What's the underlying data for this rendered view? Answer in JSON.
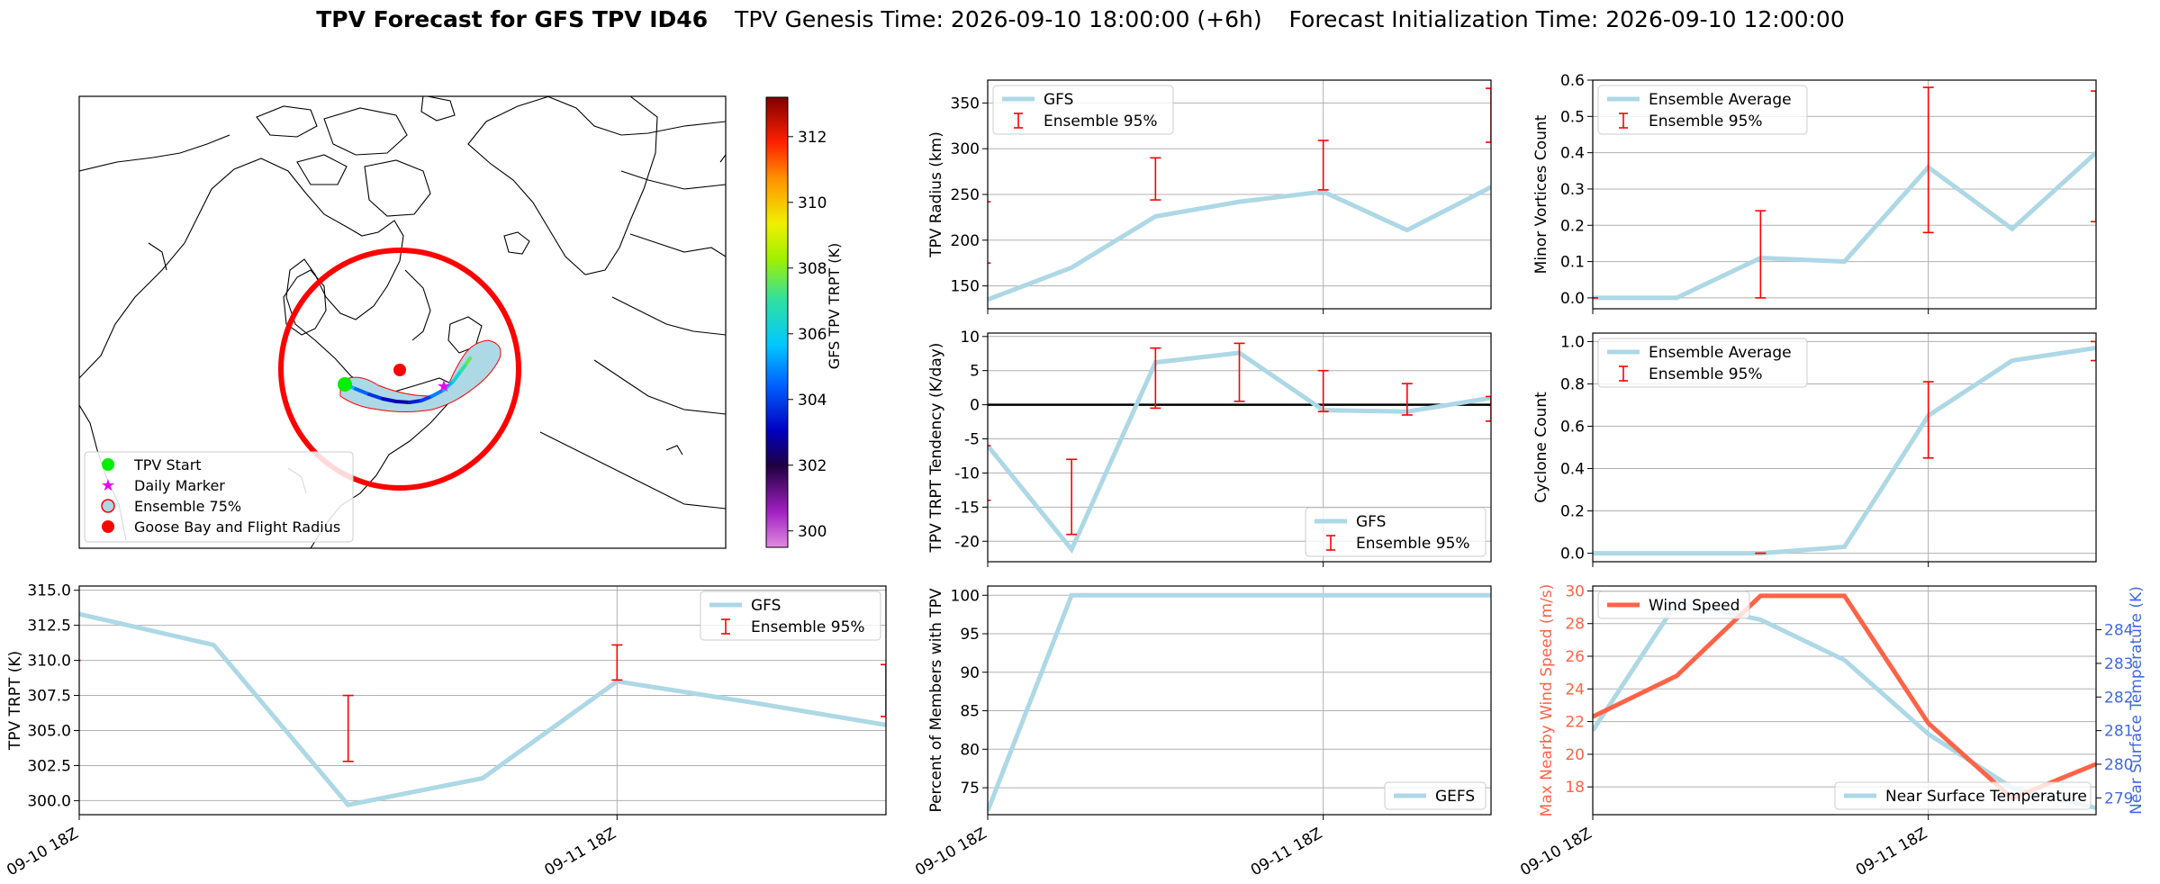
{
  "figure": {
    "title_bold": "TPV Forecast for GFS TPV ID46",
    "title_genesis": "TPV Genesis Time: 2026-09-10 18:00:00 (+6h)",
    "title_init": "Forecast Initialization Time: 2026-09-10 12:00:00"
  },
  "colors": {
    "gfs_line": "#add8e6",
    "error_bar": "#ff0000",
    "wind_line": "#ff6347",
    "temp_axis": "#4169e1",
    "flight_radius": "#ff0000",
    "tpv_start": "#00ee00",
    "daily_marker": "#ee00ee",
    "zero_line": "#000000",
    "coast": "#000000"
  },
  "chart_data": [
    {
      "id": "map",
      "type": "map",
      "colorbar": {
        "label": "GFS TPV TRPT (K)",
        "ticks": [
          300,
          302,
          304,
          306,
          308,
          310,
          312
        ],
        "range": [
          299.5,
          313.2
        ],
        "colormap": "purple-black-blue-cyan-green-yellow-orange-red"
      },
      "legend": {
        "placement": "lower left",
        "entries": [
          "TPV Start",
          "Daily Marker",
          "Ensemble 75%",
          "Goose Bay and Flight Radius"
        ]
      },
      "track_trpt_values": [
        305.5,
        304.5,
        303.8,
        303.2,
        302.9,
        303.5,
        304.0,
        304.8,
        305.5,
        306.3,
        307.0,
        307.6,
        308.2
      ]
    },
    {
      "id": "radius",
      "type": "line",
      "ylabel": "TPV Radius (km)",
      "x_ticks": [
        "09-10 18Z",
        "09-11 18Z"
      ],
      "x_ticks_rotated": false,
      "x": [
        0,
        1,
        2,
        3,
        4,
        5,
        6
      ],
      "ylim": [
        125,
        375
      ],
      "yticks": [
        150,
        200,
        250,
        300,
        350
      ],
      "grid": true,
      "legend_placement": "upper left",
      "series": [
        {
          "name": "GFS",
          "values": [
            135,
            170,
            226,
            242,
            253,
            211,
            258
          ]
        }
      ],
      "error_bar_name": "Ensemble 95%",
      "error_bars": [
        [
          -0.03,
          175,
          242
        ],
        [
          2,
          244,
          290
        ],
        [
          4,
          255,
          309
        ],
        [
          6,
          307,
          366
        ]
      ]
    },
    {
      "id": "minor-vortices",
      "type": "line",
      "ylabel": "Minor Vortices Count",
      "x_ticks": [
        "09-10 18Z",
        "09-11 18Z"
      ],
      "x_ticks_rotated": false,
      "x": [
        0,
        1,
        2,
        3,
        4,
        5,
        6
      ],
      "ylim": [
        -0.03,
        0.6
      ],
      "yticks": [
        0.0,
        0.1,
        0.2,
        0.3,
        0.4,
        0.5,
        0.6
      ],
      "grid": true,
      "legend_placement": "upper left",
      "series": [
        {
          "name": "Ensemble Average",
          "values": [
            0.0,
            0.0,
            0.11,
            0.1,
            0.36,
            0.19,
            0.4
          ]
        }
      ],
      "error_bar_name": "Ensemble 95%",
      "error_bars": [
        [
          0,
          0.0,
          0.0
        ],
        [
          2,
          0.0,
          0.24
        ],
        [
          4,
          0.18,
          0.58
        ],
        [
          6,
          0.21,
          0.57
        ]
      ]
    },
    {
      "id": "tendency",
      "type": "line",
      "ylabel": "TPV TRPT Tendency (K/day)",
      "x_ticks": [
        "09-10 18Z",
        "09-11 18Z"
      ],
      "x_ticks_rotated": false,
      "x": [
        0,
        1,
        2,
        3,
        4,
        5,
        6
      ],
      "ylim": [
        -23,
        10.5
      ],
      "yticks": [
        -20,
        -15,
        -10,
        -5,
        0,
        5,
        10
      ],
      "grid": true,
      "zero_line": true,
      "legend_placement": "lower right",
      "series": [
        {
          "name": "GFS",
          "values": [
            -6,
            -21.2,
            6.2,
            7.6,
            -0.8,
            -1.0,
            1.0
          ]
        }
      ],
      "error_bar_name": "Ensemble 95%",
      "error_bars": [
        [
          -0.03,
          -14,
          -6
        ],
        [
          1,
          -19,
          -8
        ],
        [
          2,
          -0.5,
          8.3
        ],
        [
          3,
          0.5,
          9.0
        ],
        [
          4,
          -1,
          5
        ],
        [
          5,
          -1.5,
          3.1
        ],
        [
          6,
          -2.4,
          1.2
        ]
      ]
    },
    {
      "id": "cyclone",
      "type": "line",
      "ylabel": "Cyclone Count",
      "x_ticks": [
        "09-10 18Z",
        "09-11 18Z"
      ],
      "x_ticks_rotated": false,
      "x": [
        0,
        1,
        2,
        3,
        4,
        5,
        6
      ],
      "ylim": [
        -0.04,
        1.04
      ],
      "yticks": [
        0.0,
        0.2,
        0.4,
        0.6,
        0.8,
        1.0
      ],
      "grid": true,
      "legend_placement": "upper left",
      "series": [
        {
          "name": "Ensemble Average",
          "values": [
            0.0,
            0.0,
            0.0,
            0.03,
            0.65,
            0.91,
            0.97
          ]
        }
      ],
      "error_bar_name": "Ensemble 95%",
      "error_bars": [
        [
          2,
          0.0,
          0.0
        ],
        [
          4,
          0.45,
          0.81
        ],
        [
          6,
          0.91,
          1.0
        ]
      ]
    },
    {
      "id": "trpt",
      "type": "line",
      "ylabel": "TPV TRPT (K)",
      "x_ticks": [
        "09-10 18Z",
        "09-11 18Z"
      ],
      "x_ticks_rotated": true,
      "x": [
        0,
        1,
        2,
        3,
        4,
        5,
        6
      ],
      "ylim": [
        299,
        315.3
      ],
      "yticks": [
        300.0,
        302.5,
        305.0,
        307.5,
        310.0,
        312.5,
        315.0
      ],
      "grid": true,
      "legend_placement": "upper right",
      "series": [
        {
          "name": "GFS",
          "values": [
            313.3,
            311.1,
            299.7,
            301.6,
            308.5,
            307.0,
            305.4
          ]
        }
      ],
      "error_bar_name": "Ensemble 95%",
      "error_bars": [
        [
          -0.03,
          310.0,
          310.0
        ],
        [
          2,
          302.8,
          307.5
        ],
        [
          4,
          308.6,
          311.1
        ],
        [
          6,
          306.0,
          309.7
        ]
      ]
    },
    {
      "id": "members",
      "type": "line",
      "ylabel": "Percent of Members with TPV",
      "x_ticks": [
        "09-10 18Z",
        "09-11 18Z"
      ],
      "x_ticks_rotated": true,
      "x": [
        0,
        1,
        2,
        3,
        4,
        5,
        6
      ],
      "ylim": [
        71.5,
        101.2
      ],
      "yticks": [
        75,
        80,
        85,
        90,
        95,
        100
      ],
      "grid": true,
      "legend_placement": "lower right",
      "series": [
        {
          "name": "GEFS",
          "values": [
            72,
            100,
            100,
            100,
            100,
            100,
            100
          ]
        }
      ]
    },
    {
      "id": "wind-temp",
      "type": "line",
      "ylabel": "Max Nearby Wind Speed (m/s)",
      "ylabel_right": "Near Surface Temperature (K)",
      "x_ticks": [
        "09-10 18Z",
        "09-11 18Z"
      ],
      "x_ticks_rotated": true,
      "x": [
        0,
        1,
        2,
        3,
        4,
        5,
        6
      ],
      "ylim": [
        16.3,
        30.3
      ],
      "yticks": [
        18,
        20,
        22,
        24,
        26,
        28,
        30
      ],
      "ylim_right": [
        278.5,
        285.3
      ],
      "yticks_right": [
        279,
        280,
        281,
        282,
        283,
        284
      ],
      "grid": true,
      "series": [
        {
          "name": "Wind Speed",
          "axis": "left",
          "values": [
            22.3,
            24.8,
            29.7,
            29.7,
            21.9,
            17.3,
            19.4
          ]
        },
        {
          "name": "Near Surface Temperature",
          "axis": "right",
          "values": [
            281.0,
            284.8,
            284.3,
            283.1,
            280.9,
            279.3,
            278.7
          ]
        }
      ],
      "legend_left_placement": "upper left",
      "legend_right_placement": "lower right"
    }
  ]
}
